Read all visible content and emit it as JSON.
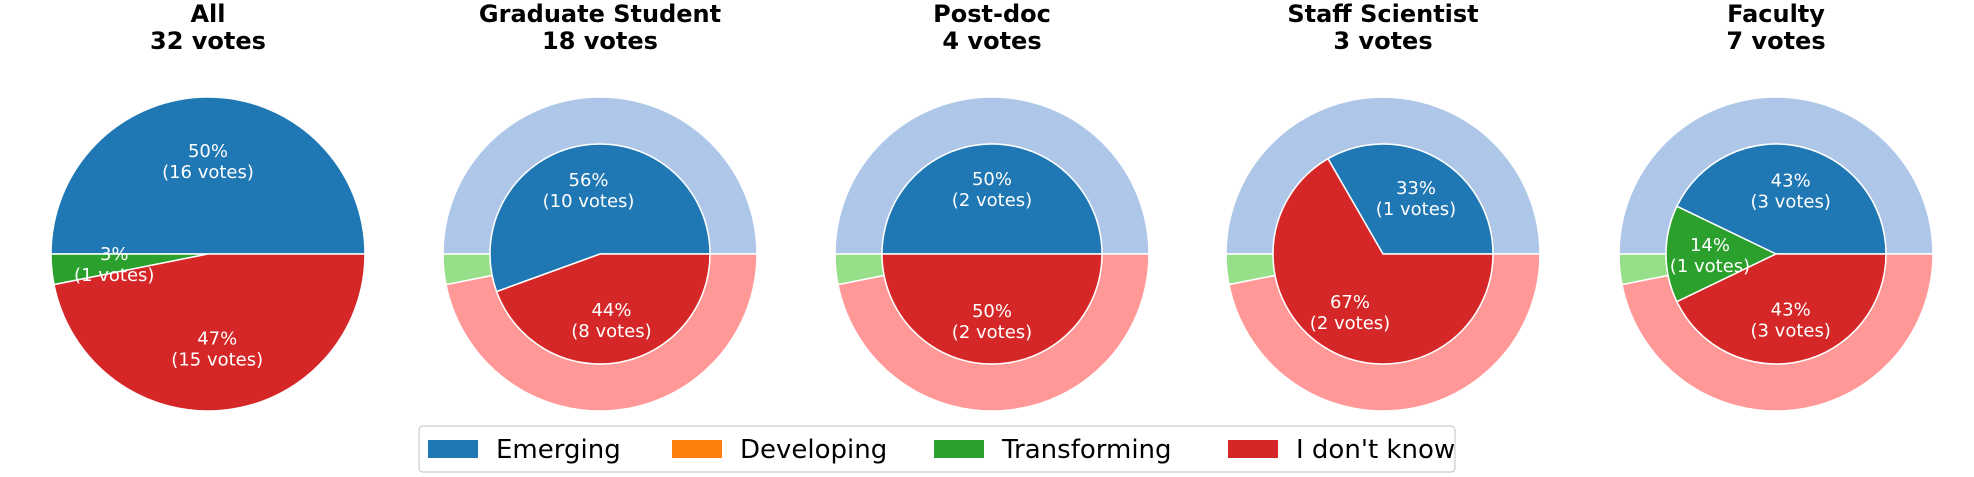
{
  "chart_data": {
    "type": "pie",
    "legend": {
      "placement": "bottom-center",
      "entries": [
        {
          "label": "Emerging",
          "color": "#1f77b4"
        },
        {
          "label": "Developing",
          "color": "#ff7f0e"
        },
        {
          "label": "Transforming",
          "color": "#2ca02c"
        },
        {
          "label": "I don't know",
          "color": "#d62728"
        }
      ]
    },
    "reference_ring": {
      "description": "outer ring repeats the All-respondents breakdown",
      "colors": {
        "Emerging": "#aec7e8",
        "Developing": "#ffbb78",
        "Transforming": "#98df8a",
        "I don't know": "#ff9896"
      },
      "votes": {
        "Emerging": 16,
        "Developing": 0,
        "Transforming": 1,
        "I don't know": 15
      }
    },
    "pies": [
      {
        "title_line1": "All",
        "title_line2": "32 votes",
        "show_reference_ring": false,
        "slices": [
          {
            "category": "Emerging",
            "votes": 16,
            "percent_label": "50%",
            "votes_label": "(16 votes)"
          },
          {
            "category": "Developing",
            "votes": 0,
            "percent_label": "",
            "votes_label": ""
          },
          {
            "category": "Transforming",
            "votes": 1,
            "percent_label": "3%",
            "votes_label": "(1 votes)"
          },
          {
            "category": "I don't know",
            "votes": 15,
            "percent_label": "47%",
            "votes_label": "(15 votes)"
          }
        ]
      },
      {
        "title_line1": "Graduate Student",
        "title_line2": "18 votes",
        "show_reference_ring": true,
        "slices": [
          {
            "category": "Emerging",
            "votes": 10,
            "percent_label": "56%",
            "votes_label": "(10 votes)"
          },
          {
            "category": "Developing",
            "votes": 0,
            "percent_label": "",
            "votes_label": ""
          },
          {
            "category": "Transforming",
            "votes": 0,
            "percent_label": "",
            "votes_label": ""
          },
          {
            "category": "I don't know",
            "votes": 8,
            "percent_label": "44%",
            "votes_label": "(8 votes)"
          }
        ]
      },
      {
        "title_line1": "Post-doc",
        "title_line2": "4 votes",
        "show_reference_ring": true,
        "slices": [
          {
            "category": "Emerging",
            "votes": 2,
            "percent_label": "50%",
            "votes_label": "(2 votes)"
          },
          {
            "category": "Developing",
            "votes": 0,
            "percent_label": "",
            "votes_label": ""
          },
          {
            "category": "Transforming",
            "votes": 0,
            "percent_label": "",
            "votes_label": ""
          },
          {
            "category": "I don't know",
            "votes": 2,
            "percent_label": "50%",
            "votes_label": "(2 votes)"
          }
        ]
      },
      {
        "title_line1": "Staff Scientist",
        "title_line2": "3 votes",
        "show_reference_ring": true,
        "slices": [
          {
            "category": "Emerging",
            "votes": 1,
            "percent_label": "33%",
            "votes_label": "(1 votes)"
          },
          {
            "category": "Developing",
            "votes": 0,
            "percent_label": "",
            "votes_label": ""
          },
          {
            "category": "Transforming",
            "votes": 0,
            "percent_label": "",
            "votes_label": ""
          },
          {
            "category": "I don't know",
            "votes": 2,
            "percent_label": "67%",
            "votes_label": "(2 votes)"
          }
        ]
      },
      {
        "title_line1": "Faculty",
        "title_line2": "7 votes",
        "show_reference_ring": true,
        "slices": [
          {
            "category": "Emerging",
            "votes": 3,
            "percent_label": "43%",
            "votes_label": "(3 votes)"
          },
          {
            "category": "Developing",
            "votes": 0,
            "percent_label": "",
            "votes_label": ""
          },
          {
            "category": "Transforming",
            "votes": 1,
            "percent_label": "14%",
            "votes_label": "(1 votes)"
          },
          {
            "category": "I don't know",
            "votes": 3,
            "percent_label": "43%",
            "votes_label": "(3 votes)"
          }
        ]
      }
    ]
  }
}
